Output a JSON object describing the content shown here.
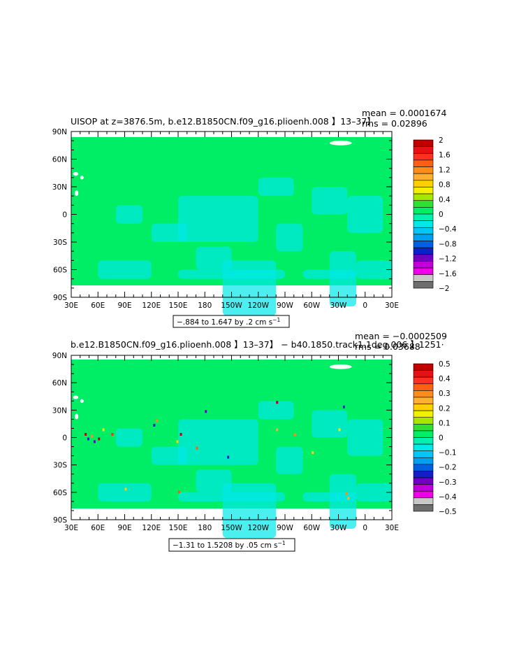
{
  "colors": {
    "zero_band": "#00ee66",
    "neg_small": "#00e0d8",
    "land_gap": "#ffffff",
    "frame": "#000000"
  },
  "chart_data": [
    {
      "type": "heatmap",
      "title": "UISOP at z=3876.5m, b.e12.B1850CN.f09_g16.plioenh.008 】13–37】",
      "stats": {
        "mean": "mean = 0.0001674",
        "rms": "rms = 0.02896"
      },
      "x_ticks": [
        "30E",
        "60E",
        "90E",
        "120E",
        "150E",
        "180",
        "150W",
        "120W",
        "90W",
        "60W",
        "30W",
        "0",
        "30E"
      ],
      "y_ticks": [
        "90N",
        "60N",
        "30N",
        "0",
        "30S",
        "60S",
        "90S"
      ],
      "xlim": [
        30,
        390
      ],
      "ylim": [
        -90,
        90
      ],
      "range_label": "−.884 to 1.647 by .2 cm s",
      "range_unit_exp": "−1",
      "colorbar": {
        "labels": [
          "2",
          "1.6",
          "1.2",
          "0.8",
          "0.4",
          "0",
          "−0.4",
          "−0.8",
          "−1.2",
          "−1.6",
          "−2"
        ],
        "colors": [
          "#c00000",
          "#e81010",
          "#ff3020",
          "#ff6010",
          "#ff8c1a",
          "#ffb030",
          "#ffd000",
          "#f2f200",
          "#a8e600",
          "#30e030",
          "#00ee66",
          "#00f0b0",
          "#00e8e8",
          "#00c8f0",
          "#00a0f0",
          "#0060e0",
          "#1020c8",
          "#7000c8",
          "#c000d8",
          "#f000e8",
          "#c8c8c8",
          "#6e6e6e"
        ]
      }
    },
    {
      "type": "heatmap",
      "title": "b.e12.B1850CN.f09_g16.plioenh.008 】13–37】 − b40.1850.track1.1deg.006 】1251·",
      "stats": {
        "mean": "mean = −0.0002509",
        "rms": "rms = 0.03688"
      },
      "x_ticks": [
        "30E",
        "60E",
        "90E",
        "120E",
        "150E",
        "180",
        "150W",
        "120W",
        "90W",
        "60W",
        "30W",
        "0",
        "30E"
      ],
      "y_ticks": [
        "90N",
        "60N",
        "30N",
        "0",
        "30S",
        "60S",
        "90S"
      ],
      "xlim": [
        30,
        390
      ],
      "ylim": [
        -90,
        90
      ],
      "range_label": "−1.31 to 1.5208 by .05 cm s",
      "range_unit_exp": "−1",
      "colorbar": {
        "labels": [
          "0.5",
          "0.4",
          "0.3",
          "0.2",
          "0.1",
          "0",
          "−0.1",
          "−0.2",
          "−0.3",
          "−0.4",
          "−0.5"
        ],
        "colors": [
          "#c00000",
          "#e81010",
          "#ff3020",
          "#ff6010",
          "#ff8c1a",
          "#ffb030",
          "#ffd000",
          "#f2f200",
          "#a8e600",
          "#30e030",
          "#00ee66",
          "#00f0b0",
          "#00e8e8",
          "#00c8f0",
          "#00a0f0",
          "#0060e0",
          "#1020c8",
          "#7000c8",
          "#c000d8",
          "#f000e8",
          "#c8c8c8",
          "#6e6e6e"
        ]
      }
    }
  ]
}
